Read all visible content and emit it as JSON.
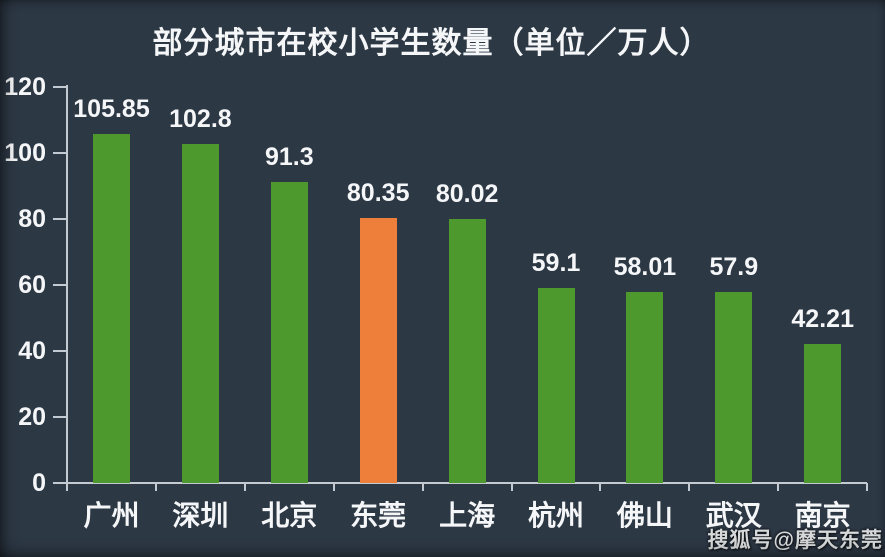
{
  "watermark": "搜狐号@摩天东莞",
  "colors": {
    "background": "#2d3845",
    "bar_green": "#4e992d",
    "bar_highlight_orange": "#ee7f3b",
    "axis": "#c4cad2",
    "text": "#f5f6f8"
  },
  "chart_data": {
    "type": "bar",
    "title": "部分城市在校小学生数量（单位／万人）",
    "categories": [
      "广州",
      "深圳",
      "北京",
      "东莞",
      "上海",
      "杭州",
      "佛山",
      "武汉",
      "南京"
    ],
    "values": [
      105.85,
      102.8,
      91.3,
      80.35,
      80.02,
      59.1,
      58.01,
      57.9,
      42.21
    ],
    "highlight_index": 3,
    "xlabel": "",
    "ylabel": "",
    "ylim": [
      0,
      120
    ],
    "yticks": [
      0,
      20,
      40,
      60,
      80,
      100,
      120
    ],
    "grid": false,
    "legend": false,
    "value_labels_shown": true
  }
}
